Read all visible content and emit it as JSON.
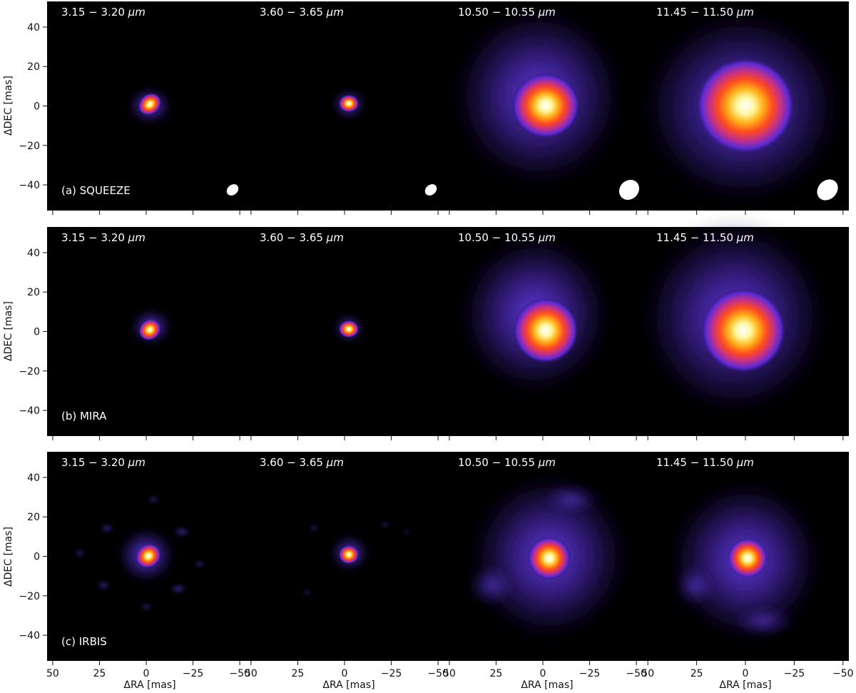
{
  "figure": {
    "rows": [
      {
        "label": "(a) SQUEEZE",
        "beam_shown": true
      },
      {
        "label": "(b) MIRA",
        "beam_shown": false
      },
      {
        "label": "(c) IRBIS",
        "beam_shown": false
      }
    ],
    "columns": [
      {
        "label_prefix": "3.15 − 3.20 ",
        "label_unit": "μm"
      },
      {
        "label_prefix": "3.60 − 3.65 ",
        "label_unit": "μm"
      },
      {
        "label_prefix": "10.50 − 10.55 ",
        "label_unit": "μm"
      },
      {
        "label_prefix": "11.45 − 11.50 ",
        "label_unit": "μm"
      }
    ],
    "xlabel": "ΔRA [mas]",
    "ylabel": "ΔDEC [mas]",
    "colormap": [
      "#000000",
      "#2a0f55",
      "#5a2ad6",
      "#b52f86",
      "#ff3b1f",
      "#ffa413",
      "#fff27a",
      "#ffffff"
    ]
  },
  "chart_data": {
    "type": "heatmap",
    "xlim": [
      53,
      -53
    ],
    "ylim": [
      -53,
      53
    ],
    "x_ticks": [
      50,
      25,
      0,
      -25,
      -50
    ],
    "y_ticks": [
      40,
      20,
      0,
      -20,
      -40
    ],
    "x_tick_labels": [
      "50",
      "25",
      "0",
      "−25",
      "−50"
    ],
    "y_tick_labels": [
      "40",
      "20",
      "0",
      "−20",
      "−40"
    ]
  }
}
